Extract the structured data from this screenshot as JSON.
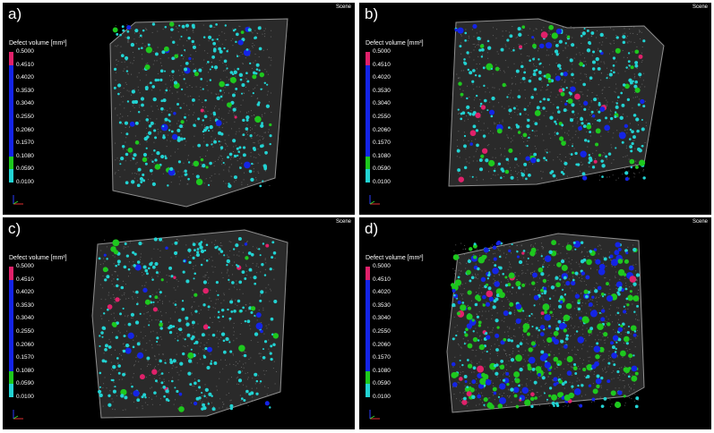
{
  "figure": {
    "scene_label": "Scene",
    "legend_title": "Defect volume [mm³]",
    "legend_ticks": [
      "0.5000",
      "0.4510",
      "0.4020",
      "0.3530",
      "0.3040",
      "0.2550",
      "0.2060",
      "0.1570",
      "0.1080",
      "0.0590",
      "0.0100"
    ],
    "colormap": [
      {
        "from": "0.4510",
        "to": "0.5000",
        "color": "#e0216a"
      },
      {
        "from": "0.1080",
        "to": "0.4510",
        "color": "#1424e6"
      },
      {
        "from": "0.0590",
        "to": "0.1080",
        "color": "#1ec81e"
      },
      {
        "from": "0.0100",
        "to": "0.0590",
        "color": "#22d3d3"
      }
    ],
    "point_cloud_color": "#9a9a9a",
    "axis_icon": "coordinate-axes-icon"
  },
  "panels": [
    {
      "id": "a",
      "label": "a)"
    },
    {
      "id": "b",
      "label": "b)"
    },
    {
      "id": "c",
      "label": "c)"
    },
    {
      "id": "d",
      "label": "d)"
    }
  ]
}
